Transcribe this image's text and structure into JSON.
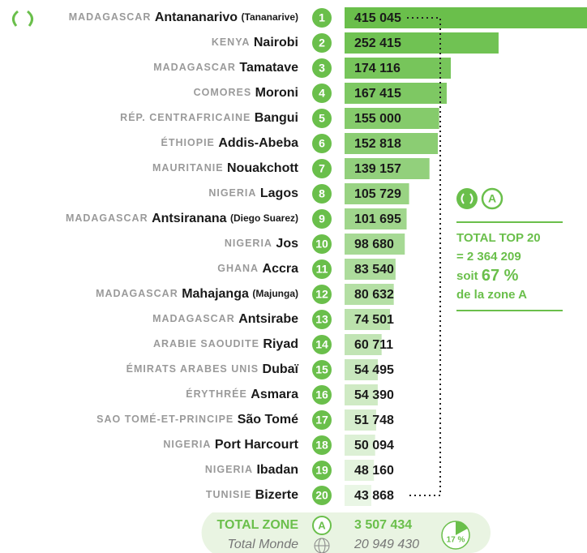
{
  "chart_data": {
    "type": "bar",
    "orientation": "horizontal",
    "countries": [
      "MADAGASCAR",
      "KENYA",
      "MADAGASCAR",
      "COMORES",
      "RÉP. CENTRAFRICAINE",
      "ÉTHIOPIE",
      "MAURITANIE",
      "NIGERIA",
      "MADAGASCAR",
      "NIGERIA",
      "GHANA",
      "MADAGASCAR",
      "MADAGASCAR",
      "ARABIE SAOUDITE",
      "ÉMIRATS ARABES UNIS",
      "ÉRYTHRÉE",
      "SAO TOMÉ-ET-PRINCIPE",
      "NIGERIA",
      "NIGERIA",
      "TUNISIE"
    ],
    "categories": [
      "Antananarivo",
      "Nairobi",
      "Tamatave",
      "Moroni",
      "Bangui",
      "Addis-Abeba",
      "Nouakchott",
      "Lagos",
      "Antsiranana",
      "Jos",
      "Accra",
      "Mahajanga",
      "Antsirabe",
      "Riyad",
      "Dubaï",
      "Asmara",
      "São Tomé",
      "Port Harcourt",
      "Ibadan",
      "Bizerte"
    ],
    "notes": [
      "(Tananarive)",
      null,
      null,
      null,
      null,
      null,
      null,
      null,
      "(Diego Suarez)",
      null,
      null,
      "(Majunga)",
      null,
      null,
      null,
      null,
      null,
      null,
      null,
      null
    ],
    "ranks": [
      1,
      2,
      3,
      4,
      5,
      6,
      7,
      8,
      9,
      10,
      11,
      12,
      13,
      14,
      15,
      16,
      17,
      18,
      19,
      20
    ],
    "values": [
      415045,
      252415,
      174116,
      167415,
      155000,
      152818,
      139157,
      105729,
      101695,
      98680,
      83540,
      80632,
      74501,
      60711,
      54495,
      54390,
      51748,
      50094,
      48160,
      43868
    ],
    "value_labels": [
      "415 045",
      "252 415",
      "174 116",
      "167 415",
      "155 000",
      "152 818",
      "139 157",
      "105 729",
      "101 695",
      "98 680",
      "83 540",
      "80 632",
      "74 501",
      "60 711",
      "54 495",
      "54 390",
      "51 748",
      "50 094",
      "48 160",
      "43 868"
    ],
    "xlim": [
      0,
      400000
    ],
    "color": "#6abf4b",
    "side": {
      "badge": "A",
      "title": "TOTAL TOP 20",
      "total": "= 2 364 209",
      "share_prefix": "soit",
      "share": "67 %",
      "share_suffix": "de la zone A"
    },
    "footer": {
      "label": "TOTAL ZONE",
      "badge": "A",
      "total": "3 507 434",
      "world_label": "Total Monde",
      "world_total": "20 949 430",
      "pie": {
        "type": "pie",
        "values": [
          17
        ],
        "value_labels": [
          "17 %"
        ],
        "color": "#6abf4b"
      }
    }
  }
}
